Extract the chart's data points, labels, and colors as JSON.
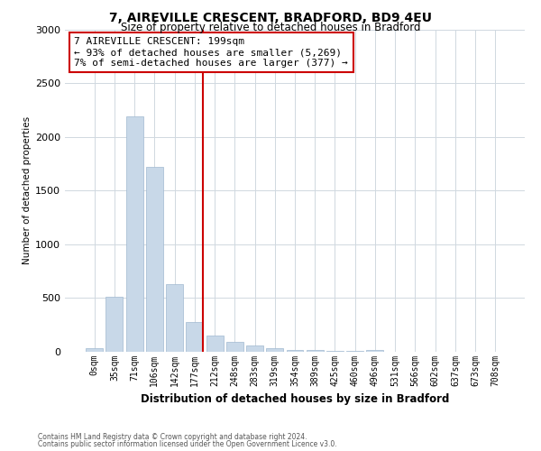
{
  "title1": "7, AIREVILLE CRESCENT, BRADFORD, BD9 4EU",
  "title2": "Size of property relative to detached houses in Bradford",
  "xlabel": "Distribution of detached houses by size in Bradford",
  "ylabel": "Number of detached properties",
  "bar_labels": [
    "0sqm",
    "35sqm",
    "71sqm",
    "106sqm",
    "142sqm",
    "177sqm",
    "212sqm",
    "248sqm",
    "283sqm",
    "319sqm",
    "354sqm",
    "389sqm",
    "425sqm",
    "460sqm",
    "496sqm",
    "531sqm",
    "566sqm",
    "602sqm",
    "637sqm",
    "673sqm",
    "708sqm"
  ],
  "bar_values": [
    30,
    510,
    2190,
    1720,
    630,
    275,
    150,
    95,
    55,
    35,
    20,
    15,
    10,
    5,
    20,
    0,
    0,
    0,
    0,
    0,
    0
  ],
  "bar_color": "#c8d8e8",
  "bar_edge_color": "#a0b8d0",
  "vline_x": 5.43,
  "vline_color": "#cc0000",
  "annotation_text": "7 AIREVILLE CRESCENT: 199sqm\n← 93% of detached houses are smaller (5,269)\n7% of semi-detached houses are larger (377) →",
  "annotation_box_color": "#ffffff",
  "annotation_box_edge": "#cc0000",
  "ylim": [
    0,
    3000
  ],
  "yticks": [
    0,
    500,
    1000,
    1500,
    2000,
    2500,
    3000
  ],
  "footnote1": "Contains HM Land Registry data © Crown copyright and database right 2024.",
  "footnote2": "Contains public sector information licensed under the Open Government Licence v3.0.",
  "bg_color": "#ffffff",
  "grid_color": "#d0d8e0"
}
